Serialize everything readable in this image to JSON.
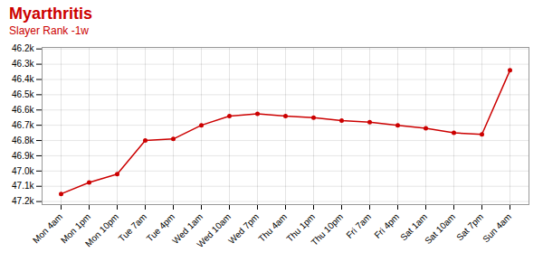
{
  "chart_data": {
    "type": "line",
    "title": "Myarthritis",
    "subtitle": "Slayer Rank -1w",
    "categories": [
      "Mon 4am",
      "Mon 1pm",
      "Mon 10pm",
      "Tue 7am",
      "Tue 4pm",
      "Wed 1am",
      "Wed 10am",
      "Wed 7pm",
      "Thu 4am",
      "Thu 1pm",
      "Thu 10pm",
      "Fri 7am",
      "Fri 4pm",
      "Sat 1am",
      "Sat 10am",
      "Sat 7pm",
      "Sun 4am"
    ],
    "values": [
      47150,
      47075,
      47020,
      46800,
      46790,
      46700,
      46640,
      46625,
      46640,
      46650,
      46670,
      46680,
      46700,
      46720,
      46750,
      46760,
      46340
    ],
    "color": "#cc0000",
    "marker": "circle",
    "ylim": [
      47220,
      46190
    ],
    "yticks": [
      {
        "value": 46200,
        "label": "46.2k"
      },
      {
        "value": 46300,
        "label": "46.3k"
      },
      {
        "value": 46400,
        "label": "46.4k"
      },
      {
        "value": 46500,
        "label": "46.5k"
      },
      {
        "value": 46600,
        "label": "46.6k"
      },
      {
        "value": 46700,
        "label": "46.7k"
      },
      {
        "value": 46800,
        "label": "46.8k"
      },
      {
        "value": 46900,
        "label": "46.9k"
      },
      {
        "value": 47000,
        "label": "47.0k"
      },
      {
        "value": 47100,
        "label": "47.1k"
      },
      {
        "value": 47200,
        "label": "47.2k"
      }
    ],
    "grid": true
  }
}
